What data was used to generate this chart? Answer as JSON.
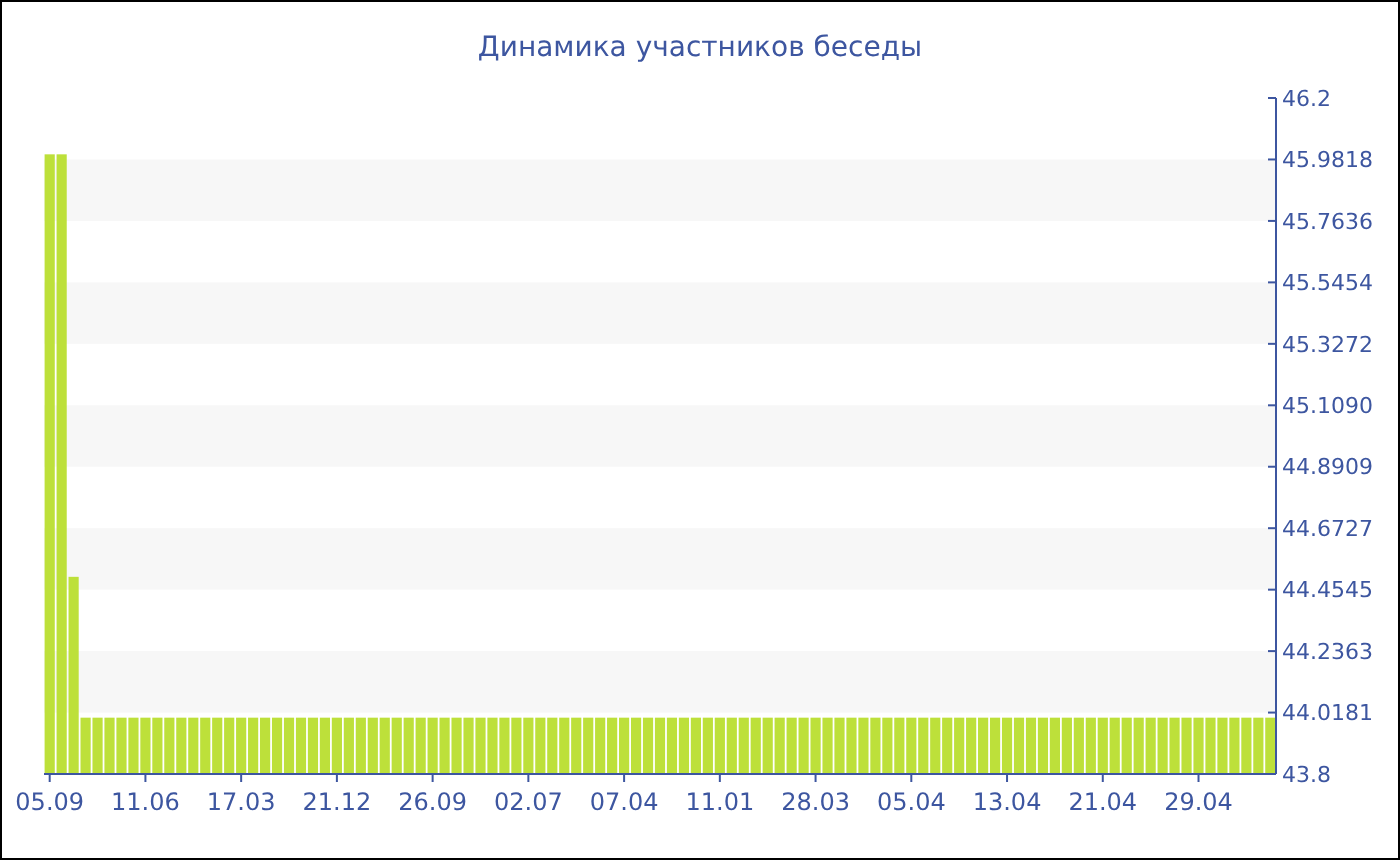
{
  "chart_data": {
    "type": "bar",
    "title": "Динамика участников беседы",
    "categories": [
      "05.09",
      null,
      null,
      null,
      null,
      null,
      null,
      null,
      "11.06",
      null,
      null,
      null,
      null,
      null,
      null,
      null,
      "17.03",
      null,
      null,
      null,
      null,
      null,
      null,
      null,
      "21.12",
      null,
      null,
      null,
      null,
      null,
      null,
      null,
      "26.09",
      null,
      null,
      null,
      null,
      null,
      null,
      null,
      "02.07",
      null,
      null,
      null,
      null,
      null,
      null,
      null,
      "07.04",
      null,
      null,
      null,
      null,
      null,
      null,
      null,
      "11.01",
      null,
      null,
      null,
      null,
      null,
      null,
      null,
      "28.03",
      null,
      null,
      null,
      null,
      null,
      null,
      null,
      "05.04",
      null,
      null,
      null,
      null,
      null,
      null,
      null,
      "13.04",
      null,
      null,
      null,
      null,
      null,
      null,
      null,
      "21.04",
      null,
      null,
      null,
      null,
      null,
      null,
      null,
      "29.04",
      null,
      null,
      null,
      null,
      null,
      null
    ],
    "values": [
      46,
      46,
      44.5,
      44,
      44,
      44,
      44,
      44,
      44,
      44,
      44,
      44,
      44,
      44,
      44,
      44,
      44,
      44,
      44,
      44,
      44,
      44,
      44,
      44,
      44,
      44,
      44,
      44,
      44,
      44,
      44,
      44,
      44,
      44,
      44,
      44,
      44,
      44,
      44,
      44,
      44,
      44,
      44,
      44,
      44,
      44,
      44,
      44,
      44,
      44,
      44,
      44,
      44,
      44,
      44,
      44,
      44,
      44,
      44,
      44,
      44,
      44,
      44,
      44,
      44,
      44,
      44,
      44,
      44,
      44,
      44,
      44,
      44,
      44,
      44,
      44,
      44,
      44,
      44,
      44,
      44,
      44,
      44,
      44,
      44,
      44,
      44,
      44,
      44,
      44,
      44,
      44,
      44,
      44,
      44,
      44,
      44,
      44,
      44,
      44,
      44,
      44,
      44
    ],
    "color": "#bde03a",
    "ylim": [
      43.8,
      46.2
    ],
    "yticks": [
      43.8,
      44.0181,
      44.2363,
      44.4545,
      44.6727,
      44.8909,
      {
        "value": 45.109,
        "label": "45.1090"
      },
      45.3272,
      45.5454,
      45.7636,
      45.9818,
      46.2
    ]
  }
}
